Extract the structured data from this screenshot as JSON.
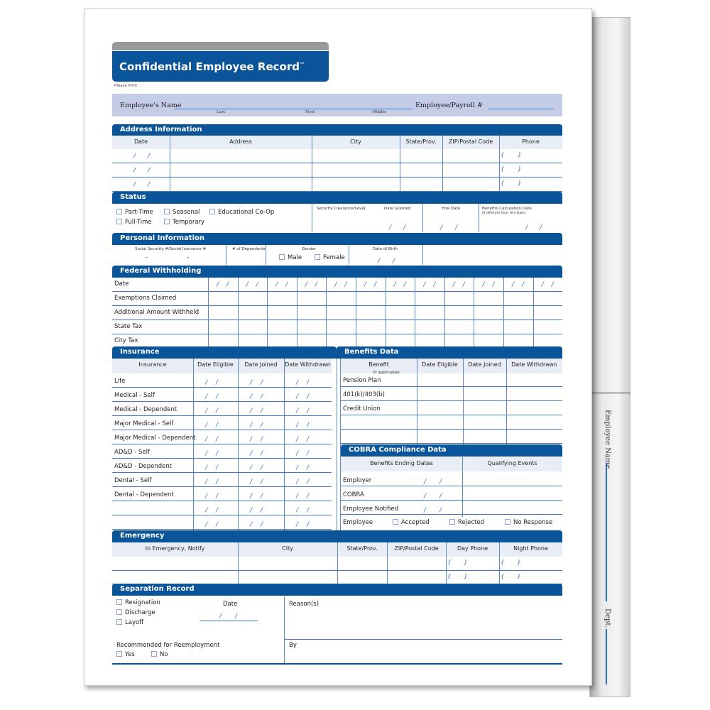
{
  "title": "Confidential Employee Record",
  "trademark": "™",
  "please_print": "Please Print",
  "name_band": {
    "employee_name": "Employee's Name",
    "last": "Last",
    "first": "First",
    "middle": "Middle",
    "payroll": "Employee/Payroll #"
  },
  "folder_tab": {
    "employee_name": "Employee Name",
    "dept": "Dept."
  },
  "address": {
    "header": "Address Information",
    "columns": [
      "Date",
      "Address",
      "City",
      "State/Prov.",
      "ZIP/Postal Code",
      "Phone"
    ],
    "rows": 3
  },
  "status": {
    "header": "Status",
    "options": [
      "Part-Time",
      "Seasonal",
      "Educational Co-Op",
      "Full-Time",
      "Temporary"
    ],
    "security": "Security Clearance/Level",
    "date_granted": "Date Granted",
    "hire_date": "Hire Date",
    "benefits_calc": "Benefits Calculation Date",
    "benefits_calc_note": "(if different from Hire Date)"
  },
  "personal": {
    "header": "Personal Information",
    "ssn": "Social Security #/Social Insurance #",
    "dependents": "# of Dependents",
    "gender": "Gender",
    "male": "Male",
    "female": "Female",
    "dob": "Date of Birth"
  },
  "federal": {
    "header": "Federal Withholding",
    "rows": [
      "Date",
      "Exemptions Claimed",
      "Additional Amount Withheld",
      "State Tax",
      "City Tax"
    ],
    "columns": 12
  },
  "insurance": {
    "header": "Insurance",
    "columns": [
      "Insurance",
      "Date Eligible",
      "Date Joined",
      "Date Withdrawn"
    ],
    "rows": [
      "Life",
      "Medical - Self",
      "Medical - Dependent",
      "Major Medical - Self",
      "Major Medical - Dependent",
      "AD&D - Self",
      "AD&D - Dependent",
      "Dental - Self",
      "Dental - Dependent",
      "",
      ""
    ]
  },
  "benefits": {
    "header": "Benefits Data",
    "columns": [
      "Benefit",
      "Date Eligible",
      "Date Joined",
      "Date Withdrawn"
    ],
    "benefit_note": "(if applicable)",
    "rows": [
      "Pension Plan",
      "401(k)/403(b)",
      "Credit Union",
      "",
      ""
    ]
  },
  "cobra": {
    "header": "COBRA Compliance Data",
    "columns": [
      "Benefits Ending Dates",
      "Qualifying Events"
    ],
    "rows": [
      "Employer",
      "COBRA",
      "Employee Notified"
    ],
    "employee": "Employee",
    "responses": [
      "Accepted",
      "Rejected",
      "No Response"
    ]
  },
  "emergency": {
    "header": "Emergency",
    "columns": [
      "In Emergency, Notify",
      "City",
      "State/Prov.",
      "ZIP/Postal Code",
      "Day Phone",
      "Night Phone"
    ]
  },
  "separation": {
    "header": "Separation Record",
    "options": [
      "Resignation",
      "Discharge",
      "Layoff"
    ],
    "date": "Date",
    "reasons": "Reason(s)",
    "by": "By",
    "recommended": "Recommended for Reemployment",
    "yes": "Yes",
    "no": "No"
  },
  "colors": {
    "primary": "#0a5599",
    "band": "#c5cde6",
    "header_row": "#e9edf5"
  }
}
